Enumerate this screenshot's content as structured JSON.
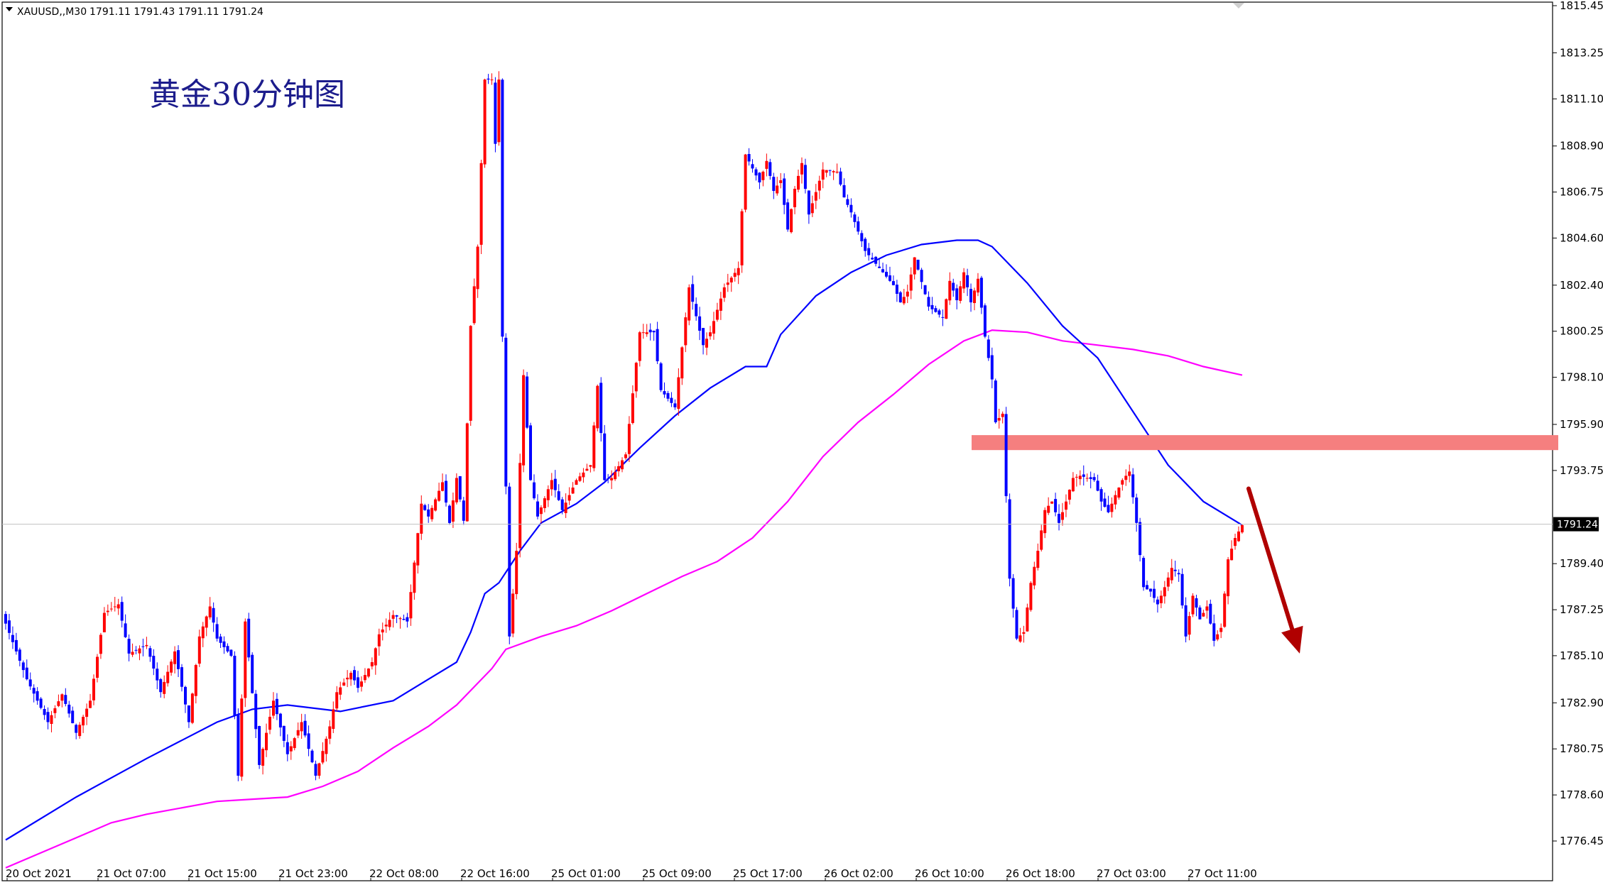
{
  "header": {
    "symbol": "XAUUSD,,M30",
    "ohlc": "1791.11 1791.43 1791.11 1791.24"
  },
  "chart_data": {
    "type": "candlestick",
    "title": "黄金30分钟图",
    "symbol": "XAUUSD",
    "timeframe": "M30",
    "ylim": [
      1775.4,
      1815.45
    ],
    "y_ticks": [
      "1815.45",
      "1813.25",
      "1811.10",
      "1808.90",
      "1806.75",
      "1804.60",
      "1802.40",
      "1800.25",
      "1798.10",
      "1795.90",
      "1793.75",
      "1791.60",
      "1789.40",
      "1787.25",
      "1785.10",
      "1782.90",
      "1780.75",
      "1778.60",
      "1776.45"
    ],
    "x_ticks": [
      "20 Oct 2021",
      "21 Oct 07:00",
      "21 Oct 15:00",
      "21 Oct 23:00",
      "22 Oct 08:00",
      "22 Oct 16:00",
      "25 Oct 01:00",
      "25 Oct 09:00",
      "25 Oct 17:00",
      "26 Oct 02:00",
      "26 Oct 10:00",
      "26 Oct 18:00",
      "27 Oct 03:00",
      "27 Oct 11:00"
    ],
    "current_price": "1791.24",
    "colors": {
      "bull": "#ff0000",
      "bear": "#0000ff",
      "ma_fast": "#0000ff",
      "ma_slow": "#ff00ff",
      "resistance": "#f57f7f",
      "arrow": "#b00000"
    },
    "resistance_zone": [
      1794.7,
      1795.4
    ],
    "price_path": [
      [
        0,
        1786.6
      ],
      [
        6,
        1784.0
      ],
      [
        12,
        1782.0
      ],
      [
        16,
        1783.3
      ],
      [
        20,
        1781.5
      ],
      [
        24,
        1783.0
      ],
      [
        28,
        1787.1
      ],
      [
        32,
        1787.5
      ],
      [
        35,
        1785.2
      ],
      [
        40,
        1785.6
      ],
      [
        44,
        1783.4
      ],
      [
        48,
        1785.3
      ],
      [
        52,
        1782.0
      ],
      [
        55,
        1786.0
      ],
      [
        58,
        1787.4
      ],
      [
        60,
        1785.9
      ],
      [
        64,
        1785.1
      ],
      [
        66,
        1779.5
      ],
      [
        68,
        1786.7
      ],
      [
        72,
        1780.0
      ],
      [
        76,
        1783.0
      ],
      [
        80,
        1780.5
      ],
      [
        84,
        1782.0
      ],
      [
        88,
        1779.5
      ],
      [
        92,
        1781.8
      ],
      [
        94,
        1783.4
      ],
      [
        98,
        1784.3
      ],
      [
        100,
        1783.6
      ],
      [
        104,
        1784.8
      ],
      [
        106,
        1786.1
      ],
      [
        110,
        1787.0
      ],
      [
        114,
        1786.7
      ],
      [
        118,
        1792.2
      ],
      [
        120,
        1791.6
      ],
      [
        124,
        1793.2
      ],
      [
        126,
        1791.3
      ],
      [
        128,
        1793.4
      ],
      [
        130,
        1791.4
      ],
      [
        132,
        1800.5
      ],
      [
        134,
        1804.2
      ],
      [
        136,
        1812.0
      ],
      [
        138,
        1812.0
      ],
      [
        139,
        1809.0
      ],
      [
        140,
        1812.0
      ],
      [
        141,
        1800.0
      ],
      [
        143,
        1786.0
      ],
      [
        145,
        1790.0
      ],
      [
        147,
        1798.2
      ],
      [
        149,
        1793.3
      ],
      [
        151,
        1791.6
      ],
      [
        155,
        1793.3
      ],
      [
        158,
        1791.9
      ],
      [
        162,
        1793.3
      ],
      [
        166,
        1794.0
      ],
      [
        168,
        1797.7
      ],
      [
        170,
        1793.3
      ],
      [
        172,
        1793.4
      ],
      [
        176,
        1794.5
      ],
      [
        180,
        1800.2
      ],
      [
        184,
        1800.2
      ],
      [
        186,
        1797.5
      ],
      [
        190,
        1796.7
      ],
      [
        194,
        1802.3
      ],
      [
        198,
        1799.6
      ],
      [
        200,
        1800.2
      ],
      [
        204,
        1802.3
      ],
      [
        208,
        1803.2
      ],
      [
        210,
        1808.5
      ],
      [
        214,
        1807.2
      ],
      [
        216,
        1808.2
      ],
      [
        218,
        1806.8
      ],
      [
        220,
        1807.3
      ],
      [
        222,
        1805.0
      ],
      [
        224,
        1806.9
      ],
      [
        226,
        1808.1
      ],
      [
        228,
        1805.7
      ],
      [
        232,
        1807.8
      ],
      [
        236,
        1807.7
      ],
      [
        238,
        1806.5
      ],
      [
        240,
        1805.8
      ],
      [
        244,
        1804.0
      ],
      [
        248,
        1803.2
      ],
      [
        252,
        1802.4
      ],
      [
        254,
        1801.6
      ],
      [
        256,
        1802.1
      ],
      [
        258,
        1803.7
      ],
      [
        262,
        1801.4
      ],
      [
        266,
        1800.9
      ],
      [
        268,
        1802.6
      ],
      [
        270,
        1801.7
      ],
      [
        272,
        1803.0
      ],
      [
        274,
        1801.6
      ],
      [
        276,
        1802.7
      ],
      [
        278,
        1800.0
      ],
      [
        280,
        1798.0
      ],
      [
        281,
        1796.0
      ],
      [
        283,
        1796.4
      ],
      [
        285,
        1788.7
      ],
      [
        287,
        1785.9
      ],
      [
        289,
        1786.2
      ],
      [
        291,
        1788.5
      ],
      [
        293,
        1790.0
      ],
      [
        295,
        1791.9
      ],
      [
        297,
        1792.3
      ],
      [
        299,
        1791.3
      ],
      [
        301,
        1792.3
      ],
      [
        303,
        1793.4
      ],
      [
        305,
        1793.5
      ],
      [
        309,
        1793.3
      ],
      [
        311,
        1792.3
      ],
      [
        313,
        1791.8
      ],
      [
        315,
        1792.6
      ],
      [
        317,
        1793.3
      ],
      [
        319,
        1793.7
      ],
      [
        321,
        1791.3
      ],
      [
        323,
        1788.3
      ],
      [
        325,
        1788.1
      ],
      [
        327,
        1787.5
      ],
      [
        329,
        1788.3
      ],
      [
        331,
        1789.2
      ],
      [
        333,
        1788.9
      ],
      [
        335,
        1786.0
      ],
      [
        337,
        1787.9
      ],
      [
        339,
        1786.8
      ],
      [
        341,
        1787.4
      ],
      [
        343,
        1785.8
      ],
      [
        345,
        1786.4
      ],
      [
        347,
        1789.6
      ],
      [
        349,
        1790.6
      ],
      [
        351,
        1791.2
      ]
    ],
    "ma_fast": [
      [
        0,
        1776.5
      ],
      [
        20,
        1778.5
      ],
      [
        40,
        1780.3
      ],
      [
        60,
        1782.0
      ],
      [
        70,
        1782.6
      ],
      [
        80,
        1782.8
      ],
      [
        95,
        1782.5
      ],
      [
        110,
        1783.0
      ],
      [
        120,
        1784.0
      ],
      [
        128,
        1784.8
      ],
      [
        132,
        1786.2
      ],
      [
        136,
        1788.0
      ],
      [
        140,
        1788.5
      ],
      [
        146,
        1790.0
      ],
      [
        152,
        1791.3
      ],
      [
        162,
        1792.2
      ],
      [
        170,
        1793.2
      ],
      [
        180,
        1794.8
      ],
      [
        190,
        1796.3
      ],
      [
        200,
        1797.6
      ],
      [
        210,
        1798.6
      ],
      [
        216,
        1798.6
      ],
      [
        220,
        1800.1
      ],
      [
        230,
        1801.9
      ],
      [
        240,
        1803.0
      ],
      [
        250,
        1803.8
      ],
      [
        260,
        1804.3
      ],
      [
        270,
        1804.5
      ],
      [
        276,
        1804.5
      ],
      [
        280,
        1804.2
      ],
      [
        290,
        1802.5
      ],
      [
        300,
        1800.5
      ],
      [
        310,
        1799.0
      ],
      [
        320,
        1796.5
      ],
      [
        330,
        1794.0
      ],
      [
        340,
        1792.3
      ],
      [
        351,
        1791.2
      ]
    ],
    "ma_slow": [
      [
        0,
        1775.2
      ],
      [
        20,
        1776.6
      ],
      [
        30,
        1777.3
      ],
      [
        40,
        1777.7
      ],
      [
        60,
        1778.3
      ],
      [
        70,
        1778.4
      ],
      [
        80,
        1778.5
      ],
      [
        90,
        1779.0
      ],
      [
        100,
        1779.7
      ],
      [
        110,
        1780.8
      ],
      [
        120,
        1781.8
      ],
      [
        128,
        1782.8
      ],
      [
        138,
        1784.5
      ],
      [
        142,
        1785.4
      ],
      [
        152,
        1786.0
      ],
      [
        162,
        1786.5
      ],
      [
        172,
        1787.2
      ],
      [
        182,
        1788.0
      ],
      [
        192,
        1788.8
      ],
      [
        202,
        1789.5
      ],
      [
        212,
        1790.6
      ],
      [
        222,
        1792.3
      ],
      [
        232,
        1794.4
      ],
      [
        242,
        1796.0
      ],
      [
        252,
        1797.3
      ],
      [
        262,
        1798.7
      ],
      [
        272,
        1799.8
      ],
      [
        280,
        1800.3
      ],
      [
        290,
        1800.2
      ],
      [
        300,
        1799.8
      ],
      [
        310,
        1799.6
      ],
      [
        320,
        1799.4
      ],
      [
        330,
        1799.1
      ],
      [
        340,
        1798.6
      ],
      [
        351,
        1798.2
      ]
    ],
    "projection": {
      "direction": "down",
      "from": 1792.9,
      "to": 1785.2
    }
  }
}
